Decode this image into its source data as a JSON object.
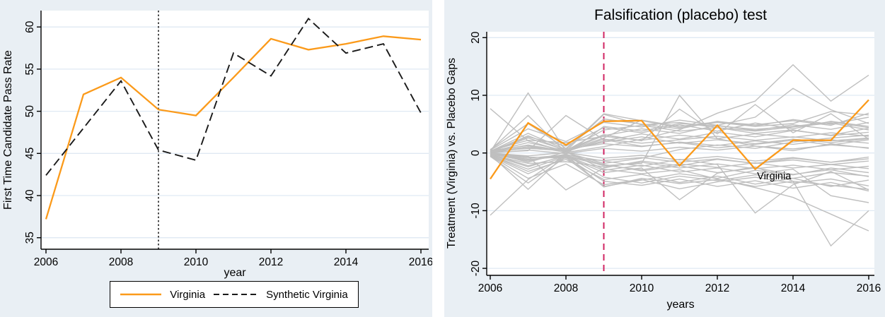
{
  "figure": {
    "panel_background": "#e9eff4",
    "plot_background": "#ffffff",
    "gridline_color": "#dfe9f3",
    "axis_color": "#000000",
    "placebo_line_color": "#bfbfbf",
    "virginia_color": "#fb9a1a",
    "synthetic_color": "#1a1a1a",
    "treatment_line_left_color": "#000000",
    "treatment_line_right_color": "#d02462",
    "title_color": "#25335f"
  },
  "chart_data": [
    {
      "id": "pass-rate-trends",
      "type": "line",
      "title": "",
      "xlabel": "year",
      "ylabel": "First Time Candidate Pass Rate",
      "x": [
        2006,
        2007,
        2008,
        2009,
        2010,
        2011,
        2012,
        2013,
        2014,
        2015,
        2016
      ],
      "xticks": [
        2006,
        2008,
        2010,
        2012,
        2014,
        2016
      ],
      "yticks": [
        35,
        40,
        45,
        50,
        55,
        60
      ],
      "xlim": [
        2005.9,
        2016.2
      ],
      "ylim": [
        33.6,
        61.9
      ],
      "grid": true,
      "legend_position": "bottom",
      "vline": {
        "x": 2009,
        "style": "dotted",
        "color": "#000000"
      },
      "series": [
        {
          "name": "Virginia",
          "color": "#fb9a1a",
          "dash": "solid",
          "values": [
            37.2,
            52.0,
            54.0,
            50.2,
            49.5,
            54.0,
            58.6,
            57.3,
            58.0,
            58.9,
            58.5
          ]
        },
        {
          "name": "Synthetic Virginia",
          "color": "#1a1a1a",
          "dash": "dashed",
          "values": [
            42.4,
            48.0,
            53.6,
            45.4,
            44.2,
            56.9,
            54.2,
            61.0,
            56.9,
            58.0,
            49.8
          ]
        }
      ],
      "legend": {
        "entries": [
          {
            "label": "Virginia"
          },
          {
            "label": "Synthetic Virginia"
          }
        ]
      }
    },
    {
      "id": "placebo-test",
      "type": "line",
      "title": "Falsification (placebo) test",
      "xlabel": "years",
      "ylabel": "Treatment (Virginia) vs. Placebo Gaps",
      "x": [
        2006,
        2007,
        2008,
        2009,
        2010,
        2011,
        2012,
        2013,
        2014,
        2015,
        2016
      ],
      "xticks": [
        2006,
        2008,
        2010,
        2012,
        2014,
        2016
      ],
      "yticks": [
        -20,
        -10,
        0,
        10,
        20
      ],
      "xlim": [
        2005.9,
        2016.15
      ],
      "ylim": [
        -21.2,
        21.1
      ],
      "grid": true,
      "vline": {
        "x": 2009,
        "style": "dashed",
        "color": "#d02462"
      },
      "annotation": {
        "text": "Virginia",
        "x": 2013.05,
        "y": -3.95
      },
      "series": [
        {
          "name": "Virginia",
          "color": "#fb9a1a",
          "dash": "solid",
          "values": [
            -4.5,
            5.2,
            1.4,
            5.5,
            5.6,
            -2.2,
            4.8,
            -2.8,
            2.2,
            2.2,
            9.2
          ]
        }
      ],
      "placebo_series": [
        [
          0.2,
          10.4,
          0.3,
          6.7,
          4.9,
          5.3,
          4.4,
          3.8,
          4.5,
          5.2,
          4.0
        ],
        [
          0.5,
          6.5,
          0.1,
          -1.8,
          -0.9,
          0.6,
          1.4,
          0.8,
          1.9,
          2.6,
          3.1
        ],
        [
          -0.3,
          -6.3,
          -0.2,
          4.6,
          3.8,
          5.1,
          4.7,
          4.1,
          4.6,
          5.4,
          4.4
        ],
        [
          0.1,
          0.4,
          6.5,
          2.3,
          1.2,
          1.8,
          0.9,
          1.5,
          2.2,
          1.4,
          2.3
        ],
        [
          0.0,
          -0.6,
          -6.4,
          -2.6,
          -1.4,
          -2.2,
          -1.1,
          -1.8,
          -0.9,
          -1.6,
          -0.7
        ],
        [
          -10.8,
          -4.6,
          -0.3,
          -5.9,
          -4.4,
          -5.3,
          -4.6,
          -5.8,
          -4.9,
          -5.6,
          -6.3
        ],
        [
          7.7,
          2.1,
          0.2,
          2.4,
          1.7,
          2.3,
          2.9,
          2.2,
          2.8,
          2.1,
          2.6
        ],
        [
          0.4,
          1.3,
          0.1,
          1.1,
          2.4,
          4.0,
          6.9,
          9.0,
          15.3,
          9.0,
          13.5
        ],
        [
          0.3,
          0.8,
          0.4,
          3.0,
          4.2,
          3.4,
          4.8,
          6.2,
          11.2,
          7.5,
          5.1
        ],
        [
          -0.2,
          -1.2,
          -0.4,
          -2.2,
          -1.8,
          10.0,
          2.5,
          1.2,
          0.4,
          1.6,
          0.8
        ],
        [
          0.2,
          2.6,
          0.5,
          3.2,
          2.1,
          7.6,
          3.3,
          8.4,
          3.5,
          6.8,
          2.4
        ],
        [
          -0.4,
          -2.8,
          -0.6,
          -3.4,
          -2.6,
          -8.1,
          -3.5,
          -2.4,
          -4.9,
          -16.1,
          -10.0
        ],
        [
          0.1,
          -1.6,
          0.2,
          -2.8,
          -3.6,
          -2.9,
          -4.5,
          -6.0,
          -7.7,
          -10.6,
          -13.5
        ],
        [
          -0.1,
          -0.9,
          -0.3,
          -1.4,
          -2.3,
          -1.1,
          -2.0,
          -10.4,
          -5.5,
          -3.2,
          -6.4
        ],
        [
          0.3,
          3.4,
          0.6,
          6.8,
          5.6,
          4.4,
          5.3,
          4.6,
          5.1,
          7.2,
          6.6
        ],
        [
          -0.5,
          -3.6,
          -0.8,
          -5.8,
          -4.7,
          -3.6,
          -4.4,
          -3.0,
          -3.8,
          -2.6,
          -3.4
        ],
        [
          0.2,
          1.8,
          0.4,
          2.6,
          5.7,
          4.6,
          5.4,
          4.9,
          5.6,
          4.8,
          6.9
        ],
        [
          -0.2,
          -2.2,
          -0.5,
          -3.0,
          -2.1,
          -3.3,
          -2.6,
          -3.6,
          -2.8,
          -7.4,
          -8.6
        ],
        [
          0.4,
          2.2,
          1.8,
          2.9,
          2.2,
          3.1,
          2.5,
          3.3,
          2.7,
          3.5,
          2.9
        ],
        [
          -0.3,
          -1.8,
          -1.5,
          -2.4,
          -1.6,
          -2.6,
          -1.9,
          -2.7,
          -2.1,
          -2.9,
          -2.3
        ],
        [
          0.1,
          0.9,
          0.7,
          1.6,
          1.1,
          1.9,
          1.3,
          2.1,
          1.5,
          2.3,
          1.7
        ],
        [
          -0.1,
          -0.7,
          -0.9,
          -1.3,
          -0.8,
          -1.6,
          -1.0,
          -1.8,
          -1.2,
          -2.0,
          -1.4
        ],
        [
          0.2,
          1.4,
          0.3,
          2.1,
          3.3,
          2.4,
          3.6,
          2.8,
          3.9,
          3.1,
          4.3
        ],
        [
          -0.2,
          -1.4,
          -0.2,
          -2.0,
          -3.1,
          -2.2,
          -3.4,
          -2.6,
          -3.7,
          -2.9,
          -4.1
        ],
        [
          0.3,
          2.8,
          1.2,
          4.4,
          3.5,
          4.9,
          3.8,
          5.2,
          4.2,
          5.5,
          4.6
        ],
        [
          -0.4,
          -3.2,
          -1.1,
          -4.6,
          -3.7,
          -5.1,
          -4.0,
          -5.4,
          -4.4,
          -5.8,
          -4.7
        ],
        [
          0.5,
          4.2,
          2.0,
          5.3,
          4.5,
          5.7,
          4.8,
          3.9,
          4.9,
          4.1,
          5.3
        ],
        [
          -0.5,
          -4.4,
          -1.9,
          -5.5,
          -4.6,
          -6.2,
          -5.0,
          -4.2,
          -5.2,
          -4.5,
          -5.7
        ],
        [
          0.6,
          5.1,
          0.8,
          5.9,
          5.0,
          4.2,
          5.5,
          4.7,
          5.8,
          5.0,
          6.2
        ],
        [
          -0.6,
          -5.2,
          -0.7,
          -4.9,
          -5.6,
          -4.5,
          -5.8,
          -4.8,
          -6.1,
          -5.1,
          -6.6
        ],
        [
          0.0,
          0.5,
          -0.1,
          0.8,
          0.3,
          1.0,
          0.5,
          1.2,
          0.7,
          1.4,
          0.9
        ],
        [
          0.0,
          -0.5,
          0.1,
          -0.9,
          -0.4,
          -1.2,
          -0.6,
          -1.4,
          -0.8,
          -1.6,
          -1.0
        ],
        [
          0.2,
          3.0,
          0.4,
          4.0,
          4.8,
          3.8,
          4.4,
          3.4,
          4.0,
          3.0,
          3.6
        ],
        [
          -0.3,
          -2.4,
          -0.4,
          -4.2,
          -5.2,
          -4.0,
          -4.8,
          -3.8,
          -4.4,
          -3.4,
          -4.0
        ],
        [
          0.1,
          1.1,
          0.5,
          1.9,
          2.8,
          1.7,
          2.3,
          1.6,
          2.4,
          1.8,
          2.5
        ],
        [
          -0.1,
          -1.1,
          -0.6,
          -2.1,
          -2.9,
          -1.9,
          -2.5,
          -1.7,
          -2.6,
          -2.0,
          -2.7
        ]
      ]
    }
  ]
}
